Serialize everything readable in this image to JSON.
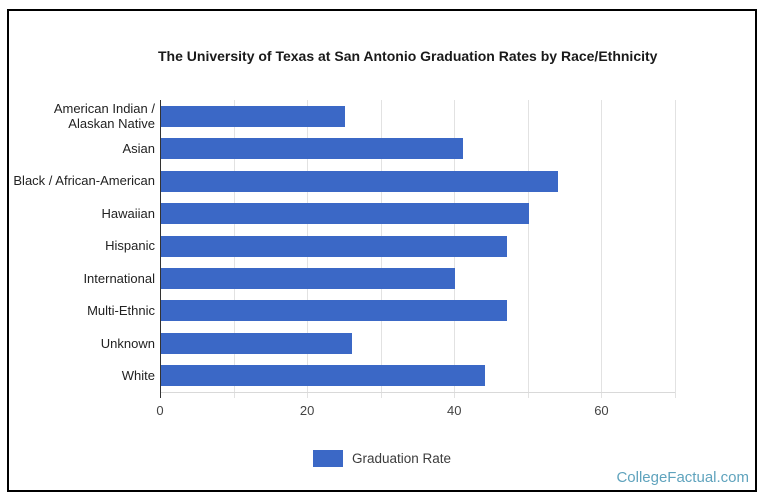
{
  "page": {
    "background": "#ffffff",
    "frame_border_color": "#000000"
  },
  "watermark": {
    "text": "CollegeFactual.com",
    "color": "#5fa3bd"
  },
  "legend": {
    "label": "Graduation Rate",
    "swatch_color": "#3b68c6",
    "position": "bottom-center"
  },
  "chart_data": {
    "type": "bar",
    "orientation": "horizontal",
    "title": "The University of Texas at San Antonio Graduation Rates by Race/Ethnicity",
    "categories": [
      "American Indian / Alaskan Native",
      "Asian",
      "Black / African-American",
      "Hawaiian",
      "Hispanic",
      "International",
      "Multi-Ethnic",
      "Unknown",
      "White"
    ],
    "series": [
      {
        "name": "Graduation Rate",
        "values": [
          25,
          41,
          54,
          50,
          47,
          40,
          47,
          26,
          44
        ]
      }
    ],
    "xlabel": "",
    "ylabel": "",
    "xlim": [
      0,
      70
    ],
    "x_ticks": [
      0,
      20,
      40,
      60
    ],
    "gridline_interval": 10,
    "grid": true,
    "legend_position": "bottom",
    "bar_color": "#3b68c6",
    "gridline_color": "#e2e2e2",
    "axis_color": "#333333",
    "tick_label_color": "#444444",
    "category_label_color": "#222222",
    "title_color": "#1a1a1a"
  }
}
